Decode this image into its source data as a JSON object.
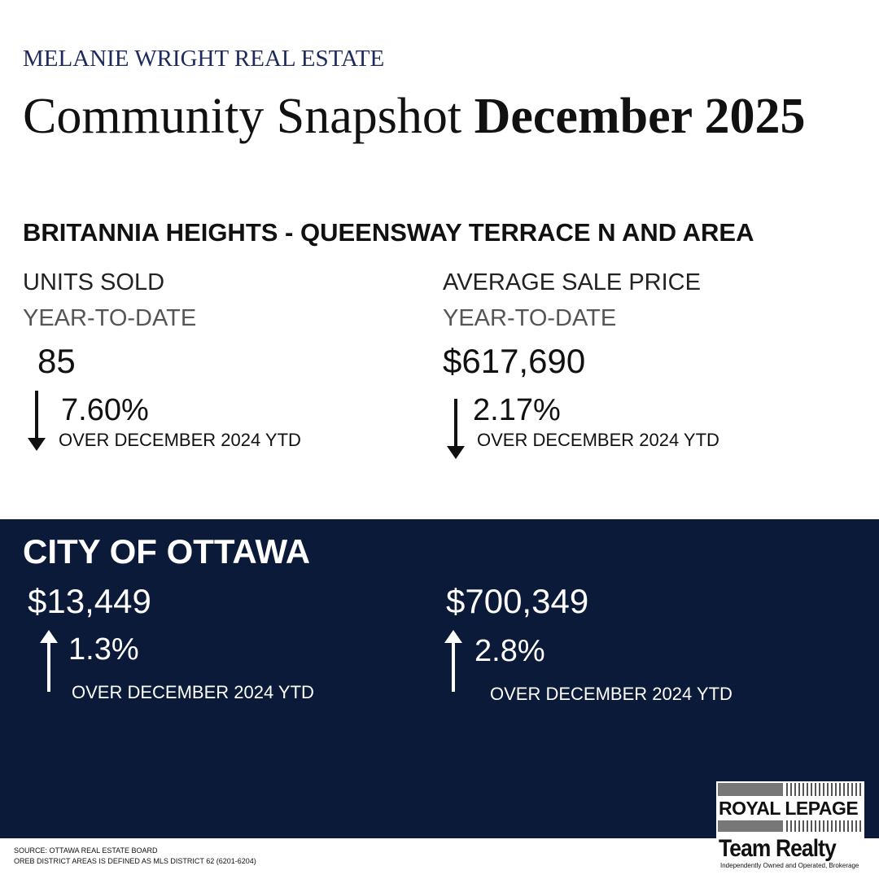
{
  "header": {
    "brand": "MELANIE WRIGHT REAL ESTATE",
    "title_light": "Community Snapshot",
    "title_bold": "December 2025"
  },
  "area": {
    "name": "BRITANNIA HEIGHTS - QUEENSWAY TERRACE N AND AREA",
    "stats": [
      {
        "label": "UNITS SOLD",
        "period": "YEAR-TO-DATE",
        "value": "85",
        "direction": "down",
        "change": "7.60%",
        "comparison": "OVER DECEMBER 2024 YTD"
      },
      {
        "label": "AVERAGE SALE PRICE",
        "period": "YEAR-TO-DATE",
        "value": "$617,690",
        "direction": "down",
        "change": "2.17%",
        "comparison": "OVER DECEMBER 2024 YTD"
      }
    ]
  },
  "city": {
    "name": "CITY OF OTTAWA",
    "stats": [
      {
        "value": "$13,449",
        "direction": "up",
        "change": "1.3%",
        "comparison": "OVER DECEMBER 2024 YTD"
      },
      {
        "value": "$700,349",
        "direction": "up",
        "change": "2.8%",
        "comparison": "OVER DECEMBER 2024 YTD"
      }
    ]
  },
  "footer": {
    "source": "SOURCE: OTTAWA REAL ESTATE BOARD",
    "note": "OREB DISTRICT AREAS IS DEFINED AS MLS DISTRICT 62 (6201-6204)"
  },
  "logo": {
    "brand": "ROYAL LEPAGE",
    "team": "Team Realty",
    "tagline": "Independently Owned and Operated, Brokerage"
  }
}
